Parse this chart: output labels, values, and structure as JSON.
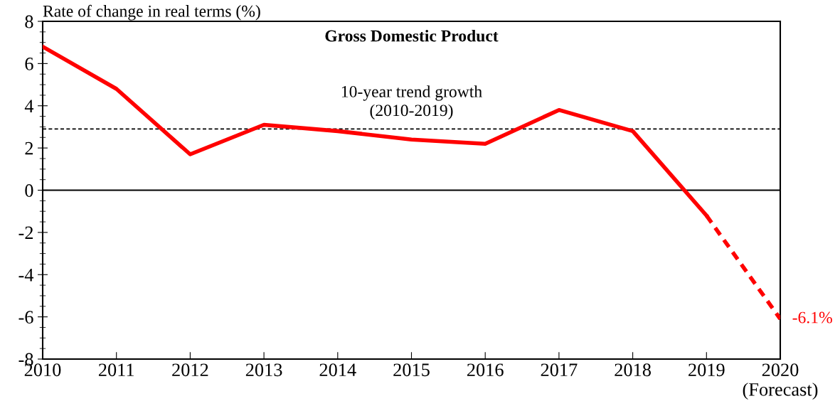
{
  "chart_data": {
    "type": "line",
    "title": "Gross Domestic Product",
    "ylabel": "Rate of change in real terms (%)",
    "xlim": [
      2010,
      2020
    ],
    "xticks": [
      2010,
      2011,
      2012,
      2013,
      2014,
      2015,
      2016,
      2017,
      2018,
      2019,
      {
        "value": 2020,
        "label": "2020\n(Forecast)"
      }
    ],
    "ylim": [
      -8,
      8
    ],
    "yticks": [
      -8,
      -6,
      -4,
      -2,
      0,
      2,
      4,
      6,
      8
    ],
    "grid": false,
    "legend": false,
    "marker": "none",
    "series": [
      {
        "color": "#ff0000",
        "line_style": "solid",
        "x": [
          2010,
          2011,
          2012,
          2013,
          2014,
          2015,
          2016,
          2017,
          2018,
          2019
        ],
        "values": [
          6.8,
          4.8,
          1.7,
          3.1,
          2.8,
          2.4,
          2.2,
          3.8,
          2.8,
          -1.2
        ]
      },
      {
        "color": "#ff0000",
        "line_style": "dashed",
        "x": [
          2019,
          2020
        ],
        "values": [
          -1.2,
          -6.1
        ]
      }
    ],
    "ref_lines": [
      {
        "axis": "y",
        "value": 2.9,
        "label": "10-year trend growth\n(2010-2019)",
        "color": "#000000",
        "line_style": "dotted"
      },
      {
        "axis": "y",
        "value": 0,
        "color": "#000000",
        "line_style": "solid"
      }
    ],
    "annotations": [
      {
        "text": "-6.1%",
        "x": 2020,
        "y": -6.1
      }
    ]
  }
}
